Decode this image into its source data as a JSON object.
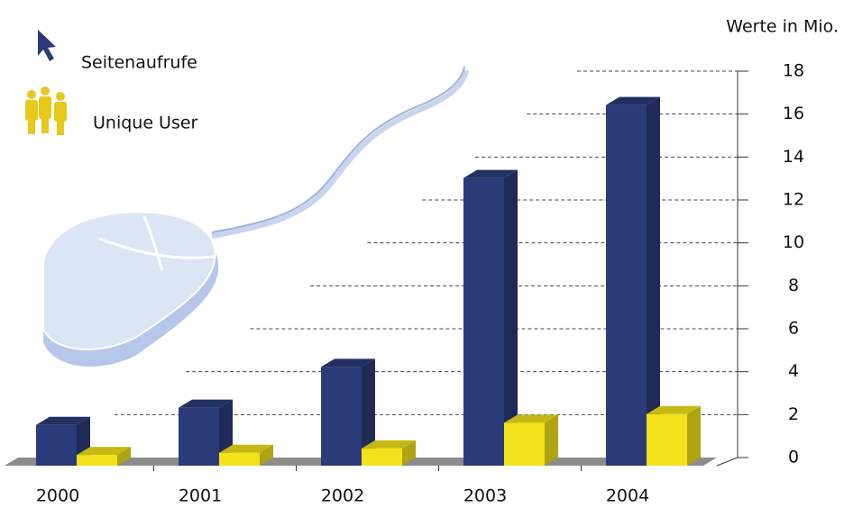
{
  "chart_data": {
    "type": "bar3d",
    "unit_label": "Werte in Mio.",
    "categories": [
      "2000",
      "2001",
      "2002",
      "2003",
      "2004"
    ],
    "series": [
      {
        "name": "Seitenaufrufe",
        "color": "#2b3a78",
        "values": [
          1.9,
          2.7,
          4.6,
          13.4,
          16.8
        ]
      },
      {
        "name": "Unique User",
        "color": "#f2e21b",
        "values": [
          0.5,
          0.6,
          0.8,
          2.0,
          2.4
        ]
      }
    ],
    "ylim": [
      0,
      18
    ],
    "yticks": [
      0,
      2,
      4,
      6,
      8,
      10,
      12,
      14,
      16,
      18
    ],
    "grid": true
  }
}
